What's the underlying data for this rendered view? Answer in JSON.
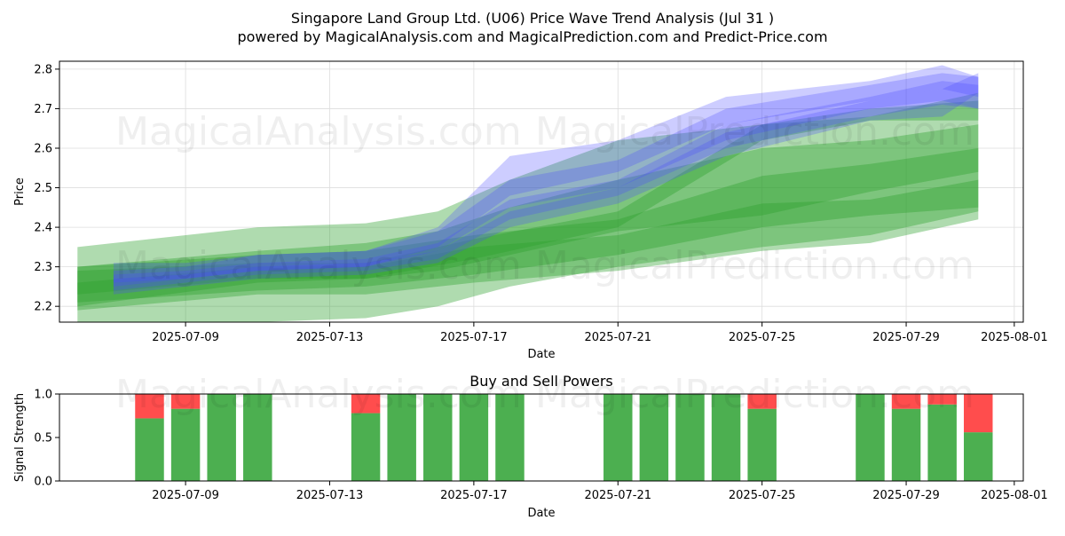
{
  "title": "Singapore Land Group Ltd. (U06) Price Wave Trend Analysis (Jul 31 )",
  "subtitle": "powered by MagicalAnalysis.com and MagicalPrediction.com and Predict-Price.com",
  "watermarks": [
    "MagicalAnalysis.com",
    "MagicalPrediction.com"
  ],
  "colors": {
    "green_band": "#2ca02c",
    "blue_band": "#4d4dff",
    "buy": "#4caf50",
    "sell": "#ff4d4d",
    "grid": "#dddddd"
  },
  "chart_data": [
    {
      "type": "area",
      "title": "",
      "xlabel": "Date",
      "ylabel": "Price",
      "xlim": [
        "2025-07-05T12:00",
        "2025-08-01T06:00"
      ],
      "ylim": [
        2.16,
        2.82
      ],
      "grid": true,
      "x_ticks": [
        "2025-07-09",
        "2025-07-13",
        "2025-07-17",
        "2025-07-21",
        "2025-07-25",
        "2025-07-29",
        "2025-08-01"
      ],
      "y_ticks": [
        2.2,
        2.3,
        2.4,
        2.5,
        2.6,
        2.7,
        2.8
      ],
      "green_bands": [
        {
          "x": [
            "2025-07-06",
            "2025-07-11",
            "2025-07-14",
            "2025-07-16",
            "2025-07-18",
            "2025-07-21",
            "2025-07-25",
            "2025-07-28",
            "2025-07-31"
          ],
          "upper": [
            2.35,
            2.4,
            2.41,
            2.44,
            2.52,
            2.62,
            2.66,
            2.68,
            2.74
          ],
          "lower": [
            2.11,
            2.16,
            2.17,
            2.2,
            2.25,
            2.3,
            2.35,
            2.38,
            2.44
          ]
        },
        {
          "x": [
            "2025-07-06",
            "2025-07-11",
            "2025-07-14",
            "2025-07-16",
            "2025-07-18",
            "2025-07-21",
            "2025-07-25",
            "2025-07-28",
            "2025-07-31"
          ],
          "upper": [
            2.3,
            2.34,
            2.36,
            2.39,
            2.45,
            2.52,
            2.6,
            2.62,
            2.66
          ],
          "lower": [
            2.2,
            2.26,
            2.27,
            2.29,
            2.33,
            2.39,
            2.43,
            2.49,
            2.54
          ]
        },
        {
          "x": [
            "2025-07-06",
            "2025-07-11",
            "2025-07-14",
            "2025-07-17",
            "2025-07-21",
            "2025-07-25",
            "2025-07-28",
            "2025-07-31"
          ],
          "upper": [
            2.3,
            2.33,
            2.34,
            2.38,
            2.42,
            2.53,
            2.56,
            2.6
          ],
          "lower": [
            2.21,
            2.24,
            2.25,
            2.28,
            2.33,
            2.4,
            2.43,
            2.45
          ]
        },
        {
          "x": [
            "2025-07-06",
            "2025-07-11",
            "2025-07-14",
            "2025-07-17",
            "2025-07-21",
            "2025-07-25",
            "2025-07-28",
            "2025-07-31"
          ],
          "upper": [
            2.26,
            2.3,
            2.3,
            2.35,
            2.38,
            2.46,
            2.47,
            2.52
          ],
          "lower": [
            2.19,
            2.23,
            2.23,
            2.26,
            2.29,
            2.34,
            2.36,
            2.42
          ]
        },
        {
          "x": [
            "2025-07-06",
            "2025-07-11",
            "2025-07-14",
            "2025-07-17",
            "2025-07-21",
            "2025-07-25",
            "2025-07-28",
            "2025-07-31"
          ],
          "upper": [
            2.29,
            2.31,
            2.31,
            2.37,
            2.44,
            2.66,
            2.7,
            2.72
          ],
          "lower": [
            2.23,
            2.27,
            2.27,
            2.32,
            2.4,
            2.62,
            2.67,
            2.67
          ]
        }
      ],
      "blue_bands": [
        {
          "x": [
            "2025-07-07",
            "2025-07-09",
            "2025-07-11",
            "2025-07-14",
            "2025-07-16",
            "2025-07-18",
            "2025-07-21",
            "2025-07-24",
            "2025-07-28",
            "2025-07-30",
            "2025-07-31"
          ],
          "upper": [
            2.29,
            2.3,
            2.33,
            2.34,
            2.39,
            2.52,
            2.57,
            2.7,
            2.76,
            2.79,
            2.78
          ],
          "lower": [
            2.25,
            2.27,
            2.29,
            2.3,
            2.34,
            2.45,
            2.5,
            2.62,
            2.7,
            2.72,
            2.7
          ]
        },
        {
          "x": [
            "2025-07-07",
            "2025-07-09",
            "2025-07-11",
            "2025-07-14",
            "2025-07-16",
            "2025-07-18",
            "2025-07-21",
            "2025-07-24",
            "2025-07-28",
            "2025-07-30",
            "2025-07-31"
          ],
          "upper": [
            2.28,
            2.29,
            2.31,
            2.32,
            2.36,
            2.47,
            2.52,
            2.66,
            2.73,
            2.77,
            2.76
          ],
          "lower": [
            2.24,
            2.26,
            2.28,
            2.29,
            2.32,
            2.42,
            2.48,
            2.6,
            2.68,
            2.71,
            2.7
          ]
        },
        {
          "x": [
            "2025-07-07",
            "2025-07-09",
            "2025-07-11",
            "2025-07-14",
            "2025-07-16",
            "2025-07-18",
            "2025-07-21",
            "2025-07-24",
            "2025-07-28",
            "2025-07-30",
            "2025-07-31"
          ],
          "upper": [
            2.31,
            2.31,
            2.33,
            2.34,
            2.4,
            2.58,
            2.62,
            2.73,
            2.77,
            2.81,
            2.78
          ],
          "lower": [
            2.26,
            2.27,
            2.29,
            2.3,
            2.35,
            2.48,
            2.54,
            2.66,
            2.72,
            2.75,
            2.73
          ]
        },
        {
          "x": [
            "2025-07-07",
            "2025-07-09",
            "2025-07-11",
            "2025-07-14",
            "2025-07-16",
            "2025-07-18",
            "2025-07-21",
            "2025-07-24",
            "2025-07-28",
            "2025-07-30",
            "2025-07-31"
          ],
          "upper": [
            2.27,
            2.28,
            2.3,
            2.31,
            2.34,
            2.44,
            2.5,
            2.64,
            2.72,
            2.75,
            2.79
          ],
          "lower": [
            2.23,
            2.25,
            2.27,
            2.28,
            2.31,
            2.4,
            2.46,
            2.58,
            2.67,
            2.68,
            2.74
          ]
        }
      ]
    },
    {
      "type": "bar",
      "title": "Buy and Sell Powers",
      "xlabel": "Date",
      "ylabel": "Signal Strength",
      "ylim": [
        0,
        1
      ],
      "y_ticks": [
        "0.0",
        "0.5",
        "1.0"
      ],
      "x_ticks": [
        "2025-07-09",
        "2025-07-13",
        "2025-07-17",
        "2025-07-21",
        "2025-07-25",
        "2025-07-29",
        "2025-08-01"
      ],
      "categories": [
        "2025-07-08",
        "2025-07-09",
        "2025-07-10",
        "2025-07-11",
        "2025-07-14",
        "2025-07-15",
        "2025-07-16",
        "2025-07-17",
        "2025-07-18",
        "2025-07-21",
        "2025-07-22",
        "2025-07-23",
        "2025-07-24",
        "2025-07-25",
        "2025-07-28",
        "2025-07-29",
        "2025-07-30",
        "2025-07-31"
      ],
      "series": [
        {
          "name": "Buy",
          "values": [
            0.72,
            0.83,
            1.0,
            1.0,
            0.78,
            1.0,
            1.0,
            1.0,
            1.0,
            1.0,
            1.0,
            1.0,
            1.0,
            0.83,
            1.0,
            0.83,
            0.88,
            0.56
          ]
        },
        {
          "name": "Sell",
          "values": [
            0.28,
            0.17,
            0.0,
            0.0,
            0.22,
            0.0,
            0.0,
            0.0,
            0.0,
            0.0,
            0.0,
            0.0,
            0.0,
            0.17,
            0.0,
            0.17,
            0.12,
            0.44
          ]
        }
      ]
    }
  ]
}
